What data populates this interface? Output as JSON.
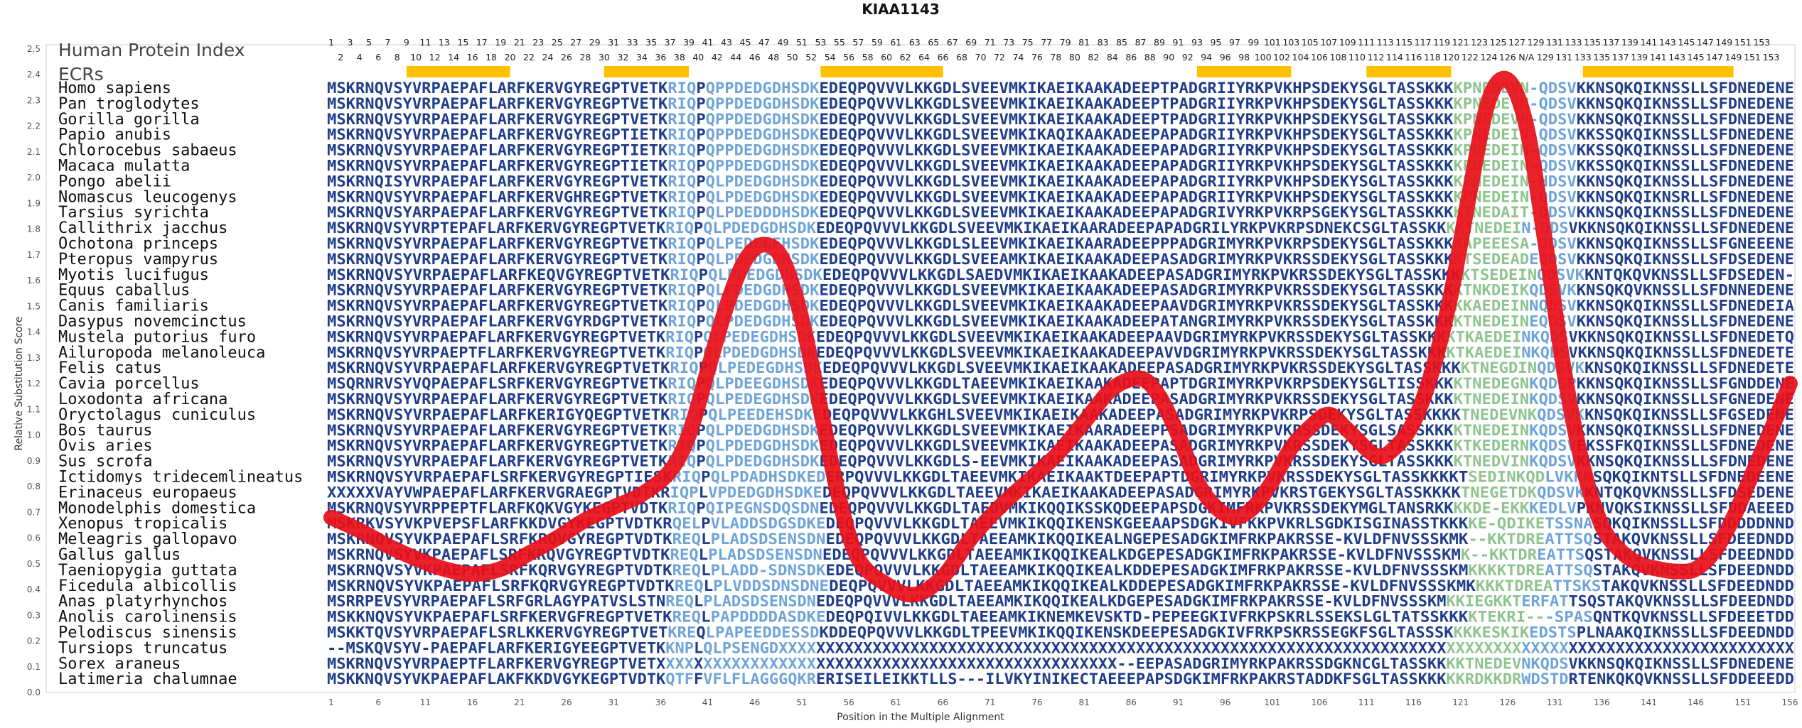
{
  "chart_data": {
    "type": "line",
    "title": "KIAA1143",
    "ylabel": "Relative Substitution Score",
    "xlabel": "Position in the Multiple Alignment",
    "ylim": [
      0.0,
      2.5
    ],
    "yticks": [
      "0.0",
      "0.1",
      "0.2",
      "0.3",
      "0.4",
      "0.5",
      "0.6",
      "0.7",
      "0.8",
      "0.9",
      "1.0",
      "1.1",
      "1.2",
      "1.3",
      "1.4",
      "1.5",
      "1.6",
      "1.7",
      "1.8",
      "1.9",
      "2.0",
      "2.1",
      "2.2",
      "2.3",
      "2.4",
      "2.5"
    ],
    "xlim": [
      1,
      156
    ],
    "xticks": [
      "1",
      "6",
      "11",
      "16",
      "21",
      "26",
      "31",
      "36",
      "41",
      "46",
      "51",
      "56",
      "61",
      "66",
      "71",
      "76",
      "81",
      "86",
      "91",
      "96",
      "101",
      "106",
      "111",
      "116",
      "121",
      "126",
      "131",
      "136",
      "141",
      "146",
      "151",
      "156"
    ],
    "position_labels_top": [
      "1",
      "3",
      "5",
      "7",
      "9",
      "11",
      "13",
      "15",
      "17",
      "19",
      "21",
      "23",
      "25",
      "27",
      "29",
      "31",
      "33",
      "35",
      "37",
      "39",
      "41",
      "43",
      "45",
      "47",
      "49",
      "51",
      "53",
      "55",
      "57",
      "59",
      "61",
      "63",
      "65",
      "67",
      "69",
      "71",
      "73",
      "75",
      "77",
      "79",
      "81",
      "83",
      "85",
      "87",
      "89",
      "91",
      "93",
      "95",
      "97",
      "99",
      "101",
      "103",
      "105",
      "107",
      "109",
      "111",
      "113",
      "115",
      "117",
      "119",
      "121",
      "123",
      "125",
      "127",
      "129",
      "131",
      "133",
      "135",
      "137",
      "139",
      "141",
      "143",
      "145",
      "147",
      "149",
      "151",
      "153"
    ],
    "position_labels_bottom": [
      "2",
      "4",
      "6",
      "8",
      "10",
      "12",
      "14",
      "16",
      "18",
      "20",
      "22",
      "24",
      "26",
      "28",
      "30",
      "32",
      "34",
      "36",
      "38",
      "40",
      "42",
      "44",
      "46",
      "48",
      "50",
      "52",
      "54",
      "56",
      "58",
      "60",
      "62",
      "64",
      "66",
      "68",
      "70",
      "72",
      "74",
      "76",
      "78",
      "80",
      "82",
      "84",
      "86",
      "88",
      "90",
      "92",
      "94",
      "96",
      "98",
      "100",
      "102",
      "104",
      "106",
      "108",
      "110",
      "112",
      "114",
      "116",
      "118",
      "120",
      "122",
      "124",
      "126",
      "N/A",
      "129",
      "131",
      "133",
      "135",
      "137",
      "139",
      "141",
      "143",
      "145",
      "147",
      "149",
      "151",
      "153"
    ],
    "header_title": "Human Protein Index",
    "ecr_label": "ECRs",
    "ecr_regions": [
      [
        9,
        20
      ],
      [
        30,
        39
      ],
      [
        53,
        66
      ],
      [
        93,
        103
      ],
      [
        111,
        120
      ],
      [
        134,
        150
      ]
    ],
    "series": [
      {
        "values": [
          [
            1,
            0.68
          ],
          [
            4,
            0.63
          ],
          [
            7,
            0.57
          ],
          [
            10,
            0.52
          ],
          [
            13,
            0.48
          ],
          [
            16,
            0.46
          ],
          [
            19,
            0.48
          ],
          [
            22,
            0.54
          ],
          [
            25,
            0.6
          ],
          [
            28,
            0.67
          ],
          [
            31,
            0.72
          ],
          [
            34,
            0.77
          ],
          [
            37,
            0.86
          ],
          [
            39,
            1.0
          ],
          [
            41,
            1.25
          ],
          [
            43,
            1.5
          ],
          [
            45,
            1.68
          ],
          [
            47,
            1.74
          ],
          [
            49,
            1.68
          ],
          [
            51,
            1.45
          ],
          [
            53,
            1.1
          ],
          [
            55,
            0.75
          ],
          [
            57,
            0.52
          ],
          [
            60,
            0.42
          ],
          [
            63,
            0.38
          ],
          [
            66,
            0.45
          ],
          [
            69,
            0.6
          ],
          [
            72,
            0.72
          ],
          [
            75,
            0.82
          ],
          [
            78,
            0.92
          ],
          [
            81,
            1.05
          ],
          [
            84,
            1.18
          ],
          [
            87,
            1.22
          ],
          [
            89,
            1.15
          ],
          [
            91,
            1.0
          ],
          [
            93,
            0.82
          ],
          [
            95,
            0.72
          ],
          [
            97,
            0.68
          ],
          [
            99,
            0.72
          ],
          [
            101,
            0.82
          ],
          [
            103,
            0.95
          ],
          [
            105,
            1.03
          ],
          [
            107,
            1.08
          ],
          [
            109,
            1.02
          ],
          [
            112,
            0.92
          ],
          [
            114,
            0.95
          ],
          [
            116,
            1.05
          ],
          [
            118,
            1.25
          ],
          [
            120,
            1.55
          ],
          [
            122,
            1.95
          ],
          [
            124,
            2.3
          ],
          [
            126,
            2.38
          ],
          [
            128,
            2.2
          ],
          [
            130,
            1.75
          ],
          [
            132,
            1.25
          ],
          [
            134,
            0.88
          ],
          [
            136,
            0.65
          ],
          [
            138,
            0.55
          ],
          [
            140,
            0.5
          ],
          [
            142,
            0.48
          ],
          [
            144,
            0.47
          ],
          [
            146,
            0.48
          ],
          [
            148,
            0.55
          ],
          [
            150,
            0.68
          ],
          [
            152,
            0.85
          ],
          [
            154,
            1.02
          ],
          [
            156,
            1.2
          ]
        ],
        "color": "#e8101a"
      }
    ],
    "grid": false,
    "legend": "none",
    "colors": {
      "seq_dark": "#1f3d8a",
      "seq_light": "#6fa4d8",
      "seq_green": "#8ec58e",
      "ecr": "#ffc000",
      "line": "#e8101a"
    }
  },
  "alignment": [
    {
      "species": "Homo sapiens",
      "seq": "MSKRNQVSYVRPAEPAFLARFKERVGYREGPTVETKRIQPQPPDEDGDHSDKEDEQPQVVVLKKGDLSVEEVMKIKAEIKAAKADEEPTPADGRIIYRKPVKHPSDEKYSGLTASSKKKKPNEDEVN-QDSVKKNSQKQIKNSSLLSFDNEDENE"
    },
    {
      "species": "Pan troglodytes",
      "seq": "MSKRNQVSYVRPAEPAFLARFKERVGYREGPTVETKRIQPQPPDEDGDHSDKEDEQPQVVVLKKGDLSVEEVMKIKAEIKAAKADEEPTPADGRIIYRKPVKHPSDEKYSGLTASSKKKKPNEDEVN-QDSVKKNSQKQIKNSSLLSFDNEDENE"
    },
    {
      "species": "Gorilla gorilla",
      "seq": "MSKRNQVSYVRPAEPAFLARFKERVGYREGPTVETKRIQPQPPDEDGDHSDKEDEQPQVVVLKKGDLSVEEVMKIKAEIKAAKADEEPTPADGRIIYRKPVKHPSDEKYSGLTASSKKKKPNEDEVN-QDSVKKNSQKQIKNSSLLSFDNEDENE"
    },
    {
      "species": "Papio anubis",
      "seq": "MSKRNQVSYVRPAEPAFLARFKERVGYREGPTIETKRIQPQPPDEDGDHSDKEDEQPQVVVLKKGDLSVEEVMKIKAQIKAAKADEEPAPADGRIIYRKPVKHPSDEKYSGLTASSKKKKPNEDEIN-QDSVKKSSQKQIKNSSLLSFDNEDENE"
    },
    {
      "species": "Chlorocebus sabaeus",
      "seq": "MSKRNQVSYVRPAEPAFLARFKERVGYREGPTIETKRIQPQPPDEDGDHSDKEDEQPQVVVLKKGDLSVEEVMKIKAEIKAAKADEEPAPADGRIIYRKPVKHPSDEKYSGLTASSKKKKPNEDEIN-QDSVKKSSQKQIKNSSLLSFDNEDENE"
    },
    {
      "species": "Macaca mulatta",
      "seq": "MSKRNQVSYVRPAEPAFLARFKERVGYREGPTIETKRIQPQPPDEDGDHSDKEDEQPQVVVLKKGDLSVEEVMKIKAEIKAAKADEEPAPADGRIIYRKPVKHPSDEKYSGLTASSKKKKPNEDEIN-QDSVKKSSQKQIKNSSLLSFDNEDENE"
    },
    {
      "species": "Pongo abelii",
      "seq": "MSKRNQISYVRPAEPAFLARFKERVGYREGPTVETKRIQPQLPDEDGDHSDKEDEQPQVVVLKKGDLSVEEVMKIKAEIKAAKADEEPAPADGRIIYRKPVKHPSDEKYSGLTASSKKKKPNEDEIN-HDSVKKNSQKQIKNSSLLSFDNEDENE"
    },
    {
      "species": "Nomascus leucogenys",
      "seq": "MSKRNQVSYVRPAEPAFLARFKERVGHREGPTVETKRIQPQLPDEDGDHSDKEDEQPQVVVLKKGDLSVEEVMKIKAEIKAAKADEEPAPADGRIIYRKPVKHPSDEKYSGLTASSKKKKPNEDEIN-QDSVKKNSQKQIKNSRLLSFDNEDENE"
    },
    {
      "species": "Tarsius syrichta",
      "seq": "MSKRNQVSYARPAEPAFLARFKERVGYREGPTVETKRIQPQLPDEDDDHSDKEDEQPQVVVLKKGDLSVEEVMKIKAEIKAAKADEEPAPADGRIVYRKPVKRPSGEKYSGLTASSKKKKTNEDAIT-QDSVKKNSQKQIKNSSLLSFDNEDENE"
    },
    {
      "species": "Callithrix jacchus",
      "seq": "MSKRNQVSYVRPTEPAFLARFKERVGYREGPTVETKRIQPQLPDEDGDHSDKEDEQPQVVVLKKGDLSVEEVMKIKAEIKAARADEEPAPADGRILYRKPVKRPSDNEKCSGLTASSKKKKTNEDEIN-QDSVKKNSQKQIKNSSLLSFDNEDENE"
    },
    {
      "species": "Ochotona princeps",
      "seq": "MSKRNQVSYVRPAEPAFLARFKERVGYREGPTVETKRIQPQLPEDEGEHSDKEDEQPQVVVLKKGDLSLEEVMKIKAEIKAARADEEPPPADGRIMYRKPVKRPSDEKYSGLTASSKKKKAPEEESA-QDSVKKNSQKQIKNSSLLSFGNEEENE"
    },
    {
      "species": "Pteropus vampyrus",
      "seq": "MSKRNQVSYVRPAEPAFLARFKERVGYREGPTVETKRIQPQLPDEDGDHSDKEDEQPQVVVLKKGDLSVEEAMKIKAEIKAAKADEEPASADGRIMYRKPVKRSSDEKYSGLTASSKKKKTSEDEADEQDSVKKNSQKQIKNSSLLSFDSEDENE"
    },
    {
      "species": "Myotis lucifugus",
      "seq": "MSKRNQVSYVRPAEPAFLARFKEQVGYREGPTVETKRIQPQLPDEDGDHSDKEDEQPQVVVLKKGDLSAEDVMKIKAEIKAAKADEEPASADGRIMYRKPVKRSSDEKYSGLTASSKKKKTSEDEINQDSVKKNTQKQVKNSSLLSFDSEDEN-"
    },
    {
      "species": "Equus caballus",
      "seq": "MSKRNQVSYVRPAEPAFLARFKERVGYREGPTVETKRIQPQLPDEDGDHSDKEDEQPQVVVLKKGDLSVEEVMKIKAEIKAAKADEEPASADGRIMYRKPVKRSSDEKYSGLTASSKKKKTNKDEIKQDSVKKNSQKQVKNSSLLSFDNNEDENE"
    },
    {
      "species": "Canis familiaris",
      "seq": "MSKRNQVSYVRPAEPAFLARFKERVGYREGPTVETKRIQPQLPDEDGDHSDKEDEQPQVVVLKKGDLSVEEVMKIKAEIKAAKADEEPAAVDGRIMYRKPVKRSSDEKYSGLTASSKKKKKAEDEINNQDSVKKNSQKQIKNSSLLSFDNEDEIA"
    },
    {
      "species": "Dasypus novemcinctus",
      "seq": "MSKRNQVSYVRPAEPAFLARFKERVGYRDGPTVETKRIQPQLPDEDGDHSDKEDEQPQVVVLKKGDLSVEEVMKIKAEIKAAKADEEPATANGRIMYRKPVKRSSDEKYSGLTASSKKKKTNEDEINEQDSVKKNSQKQIKNSSLLSFDNEDENE"
    },
    {
      "species": "Mustela putorius furo",
      "seq": "MSKRNQVSYVRPAEPAFLARFKERVGYREGPTVETKRIQPQLPEDEGDHSDKEDEQPQVVVLKKGDLSVEEVMKIKAEIKAAKADEEPAAVDGRIMYRKPVKRSSDEKYSGLTASSKKKKTKAEDEINKQDSVKKNSQKQIKNSSLLSFDNEDETQ"
    },
    {
      "species": "Ailuropoda melanoleuca",
      "seq": "MSKRNQVSYVRPAEPTFLARFKERVGYREGPTVETKRIQPQLPDEDGDHSDKEDEQPQVVVLKKGDLSVEEVMKIKAEIKAAKADEEPAVVDGRIMYRKPVKRSSDEKYSGLTASSKKKKTKAEDEINKQDSVKKNSQKQIKNSSLLSFDNEDETE"
    },
    {
      "species": "Felis catus",
      "seq": "MSKRNQVSYVRPAEPAFLARFKERVGYREGPTVETKRIQPQLPEDEGDHSDKEDEQPQVVVLKKGDLSVEEVMKIKAEIKAAKADEEPASADGRIMYRKPVKRSSDEKYSGLTASSKKKKTNEGDINQDSVKKNSQKQIKNSSLLSFDNEDETE"
    },
    {
      "species": "Cavia porcellus",
      "seq": "MSQRNRVSYVQPAEPAFLSRFKERVGYREGPTVETKRIQPQLPDEEGDHSDKEDEQPQVVVLKKGDLTAEEVMKIKAEIKAAKADEEPAPTDGRIMYRKPVKRPSDEKYSGLTISSKKKKTNEDEGNKQDSPKKNSQKQIKNSSLLSFGNDDENE"
    },
    {
      "species": "Loxodonta africana",
      "seq": "MSKRNQVSYVRPAEPAFLARFKERVGYREGPTVETKRIQPQLPEDEGDHSDKEDEQPQVVVLKKGDLSVEEVMKIKAEIKAAKADEEPASADGRIMYRKPVKRSSDEKYSGLTASSKKKKTNEDEINKQDSVKKNSQKQIKNSSLLSFGNEDENE"
    },
    {
      "species": "Oryctolagus cuniculus",
      "seq": "MSKRNQVSYVRPAEPAFLARFKERIGYQEGPTVETKRIQPQLPEEDEHSDKEDEQPQVVVLKKGHLSVEEVMKIKAEIKAAKADEEPASADGRIMYRKPVKRPSDEKYSGLTASSKKKKTNEDEVNKQDSVKKNSQKQIKNSSLLSFGSEDENE"
    },
    {
      "species": "Bos taurus",
      "seq": "MSKRNQVSYVRPAEPAFLARFKERVGYREGPTVETKRIQPQLPDEDGDHSDKEDEQPQVVVLKKGDLSVEEVMKIKAEIKAARADEEPPSADGRIMYRKPVKRSSDEKYSGLSASSKKKKTNEDEINKQDSVKKNSQKQIKNSSLLSFDNEDENE"
    },
    {
      "species": "Ovis aries",
      "seq": "MSKRNQVSYVRPAEPAFLARFKERVGYREGPTVETKRIQPQLPDEDGDHSDKEDEQPQVVVLKKGDLSVEEVMKIKAEIKAAKADEEPASADGRIMYRKPVKRSSDEKYSGLTASSKKKKTKEDERNKQDSVEKSSFKQIKNSSLLSFDNEDENE"
    },
    {
      "species": "Sus scrofa",
      "seq": "MSKRNQVSYVRPAEPAFLARFKERVGYREGPTVETKRIQPQLPDEDGDHSDKEDEQPQVVVLKKGDLS-EEVMKIKAEIKAAKADEEPASADGRIMYRKPVKRSSDEKYSGLTASSKKKKTNEDVINKQDSVKKNSQKQIKNSSLLSFDNEDENE"
    },
    {
      "species": "Ictidomys tridecemlineatus",
      "seq": "MSKRNQVSYVRPAEPAFLSRFKERVGYREGPTIESKRIQPQLPDADHSDKEDERPQVVVLKKGDLTAEEVMKIKAEIKAAKTDEEPAPTDGRIMYRKPVKRSSDEKYSGLTASSKKKKTSEDINKQDLVKKNSQKQIKNTSLLSFDNEDEENE"
    },
    {
      "species": "Erinaceus europaeus",
      "seq": "XXXXXVAYVWPAEPAFLARFKERVGRAEGPTVDTKRIQPLVPDEDGDHSDKEDEQPQVVVLKKGDLTAEEVMKIKAEIKAAKADEEPASADGRIMYRKPVKRSTGEKYSGLTASSKKKKTNEGETDKQDSVKKNTQKQVKNSSLLSFDSEDENE"
    },
    {
      "species": "Monodelphis domestica",
      "seq": "MSKRNQVSYVRPPEPTFLARFKQKVGYKEGPTVDTKRIQPQIPEGNSDQSDNEDEQPQVVVLKKGDLTAEDVMKIKQQIKSSKQDEEPAPSDGKIMFRKPVKRSSDEKYMGLTANSRKKKKDE-EKKKEDLVPKNVQKSIKNSSLLSFDDAEEED"
    },
    {
      "species": "Xenopus tropicalis",
      "seq": "MSKRKVSYVKPVEPSFLARFKKDVGYKEGPTVDTKRQELPVLADDSDGSDKEDEQPQVVVLKKGDLTAEEVMKIKQQIKENSKGEEAAPSDGKIVFKKPVKRLSGDKISGINASSTKKKKE-QDIKETSSNASQKQIKNSSLLSFDDDDDNND"
    },
    {
      "species": "Meleagris gallopavo",
      "seq": "MSKRNQVSYVKPAEPAFLSRFKRQVGYREGPTVDTKREQLPLADSDSENSDNEDEQPQVVVLKKGDLTAEEAMKIKQQIKEALNGEPESADGKIMFRKPAKRSSE-KVLDFNVSSSKMK--KKTDREATTSQSTAKQVKNSSLLSFDEEDNDD"
    },
    {
      "species": "Gallus gallus",
      "seq": "MSKRNQVSYVKPAEPAFLSRFKRQVGYREGPTVDTKREQLPLADSDSENSDNEDEQPQVVVLKKGDLTAEEAMKIKQQIKEALKDGEPESADGKIMFRKPAKRSSE-KVLDFNVSSSKMK--KKTDREATTSQSTAKQVKNSSLLSFDEEDNDD"
    },
    {
      "species": "Taeniopygia guttata",
      "seq": "MSKRNQVSYVKPAEPAFLSRFKQRVGYREGPTVDTKREQLPLADD-SDNSDKEDEQPQVVVLKKGDLTAEEAMKIKQQIKEALKDDEPESADGKIMFRKPAKRSSE-KVLDFNVSSSKMKKKKTDREATTSQSTAKQVKNSSLLSFDEEDNDD"
    },
    {
      "species": "Ficedula albicollis",
      "seq": "MSKRNQVSYVKPAEPAFLSRFKQRVGYREGPTVDTKREQLPLVDDSDNSDNEDEQPQVVVLKKGDLTAEEAMKIKQQIKEALKDDEPESADGKIMFRKPAKRSSE-KVLDFNVSSSKMKKKKTDREATTSKSTAKQVKNSSLLSFDEEDNDD"
    },
    {
      "species": "Anas platyrhynchos",
      "seq": "MSRRPEVSYVRPAEPAFLSRFGRLAGYPATVSLSTNREQLPLADSDSENSDNEDEQPQVVVLKKGDLTAEEAMKIKQQIKEALKDGEPESADGKIMFRKPAKRSSE-KVLDFNVSSSKMKKIEGKKTERFATTSQSTAKQVKNSSLLSFDEEDNDD"
    },
    {
      "species": "Anolis carolinensis",
      "seq": "MSKKNQVSYVKPAEPAFLSRFKERVGFREGPTVETKREQLPAPDDDDASDKEDEQPQIVVLKKGDLTAEEAMKIKNEMKEVSKTD-PEPEEGKIVFRKPSKRLSSEKSLGLTATSSKKKKTEKRI---SPASQNTKQVKNSSLLSFDEEETDD"
    },
    {
      "species": "Pelodiscus sinensis",
      "seq": "MSKKTQVSYVRPAEPAFLSRLKKERVGYREGPTVETKREQLPAPEEDDESSDKDDEQPQVVVLKKGDLTPEEVMKIKQQIKENSKDEEPESADGKIVFRKPSKRSSEGKFSGLTASSSKKKKESKIKEDSTSPLNAAKQIKNSSLLSFDEEDNDD"
    },
    {
      "species": "Tursiops truncatus",
      "seq": "--MSKQVSYV-PAEPAFLARFKERIGYEEGPTVETKKNPLQLPSENGDXXXXXXXXXXXXXXXXXXXXXXXXXXXXXXXXXXXXXXXXXXXXXXXXXXXXXXXXXXXXXXXXXXXXXXXXXXXXXXXXXXXXXXXXXXXXXXXXXXXXXXXXXXXX"
    },
    {
      "species": "Sorex araneus",
      "seq": "MSKRNQVSYVRPAEPTFLARFKERVGYREGPTVETXXXXXXXXXXXXXXXXXXXXXXXXXXXXXXXXXXXXXXXXXXXXXXXXX--EEPASADGRIMYRKPAKRSSDGKNCGLTASSKKKKTNEDEVNKQDSVKKNSQKQIKNSSLLSFDNEDENE"
    },
    {
      "species": "Latimeria chalumnae",
      "seq": "MSKKNQVSYVKPAEPAFLAKFKKDVGYKEGPTVDTKQTFFVFLFLAGGGQKRERISEILEIKKTLLS---ILVKYINIKECTAEEEPAPSDGKIMFRKPAKRSTADDKFSGLTASSKKKKKRDKKDRWDSTDRTENKQKQVKNSSLLSFDDEEEDD"
    }
  ]
}
